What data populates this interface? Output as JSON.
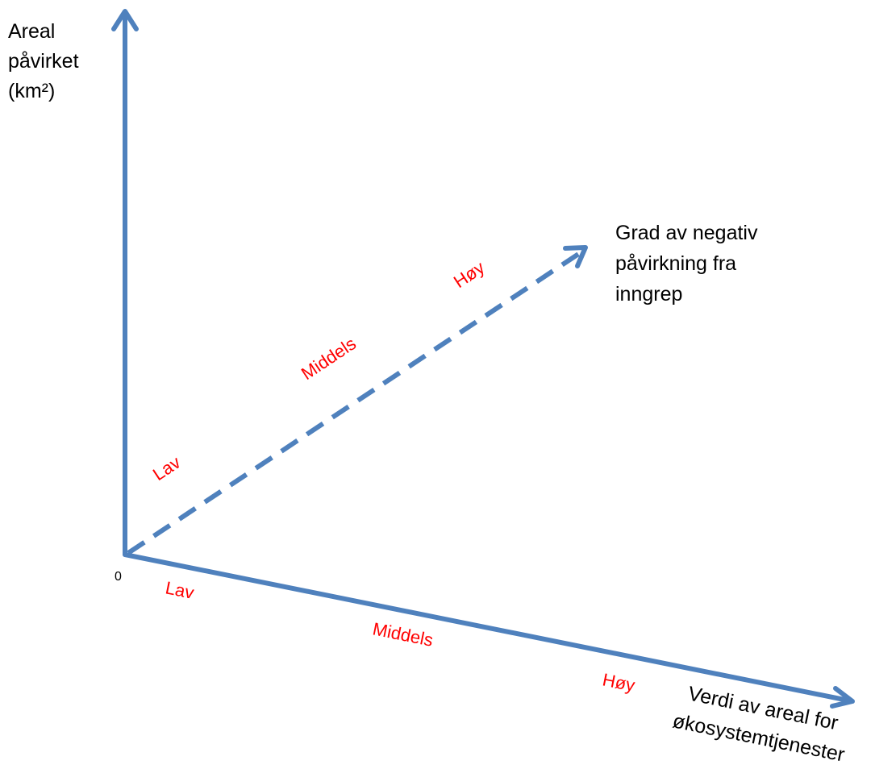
{
  "colors": {
    "axis": "#4f81bd",
    "level_text": "#ff0000",
    "title_text": "#000000"
  },
  "axes": {
    "vertical": {
      "title_lines": [
        "Areal",
        "påvirket",
        "(km²)"
      ]
    },
    "diagonal": {
      "title_lines": [
        "Grad av negativ",
        "påvirkning fra",
        "inngrep"
      ],
      "line_style": "dashed",
      "levels": [
        "Lav",
        "Middels",
        "Høy"
      ]
    },
    "horizontal": {
      "title_lines": [
        "Verdi av areal for",
        "økosystemtjenester"
      ],
      "levels": [
        "Lav",
        "Middels",
        "Høy"
      ]
    }
  },
  "origin_label": "0"
}
